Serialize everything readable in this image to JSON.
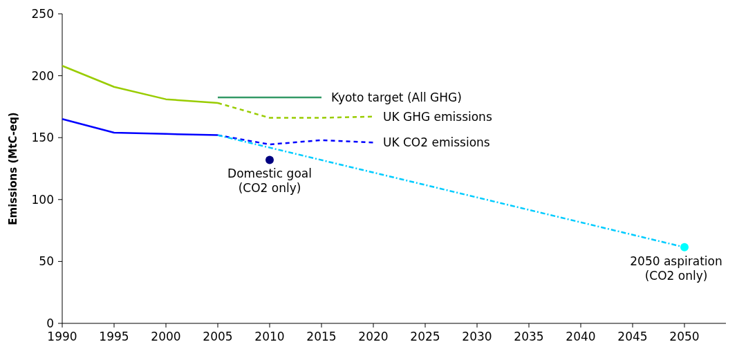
{
  "chart_data": {
    "type": "line",
    "ylabel": "Emissions (MtC-eq)",
    "xlim": [
      1990,
      2054
    ],
    "ylim": [
      0,
      250
    ],
    "xticks": [
      1990,
      1995,
      2000,
      2005,
      2010,
      2015,
      2020,
      2025,
      2030,
      2035,
      2040,
      2045,
      2050
    ],
    "yticks": [
      0,
      50,
      100,
      150,
      200,
      250
    ],
    "grid": false,
    "series": [
      {
        "color": "#99cc00",
        "x": [
          1990,
          1995,
          2000,
          2005
        ],
        "values": [
          208,
          191,
          181,
          178
        ],
        "line_style": "solid"
      },
      {
        "name": "UK GHG emissions",
        "color": "#99cc00",
        "x": [
          2005,
          2010,
          2015,
          2020
        ],
        "values": [
          178,
          166,
          166,
          167
        ],
        "line_style": "dashed"
      },
      {
        "color": "#0000ff",
        "x": [
          1990,
          1995,
          2000,
          2005
        ],
        "values": [
          165,
          154,
          153,
          152
        ],
        "line_style": "solid"
      },
      {
        "name": "UK CO2 emissions",
        "color": "#0000ff",
        "x": [
          2005,
          2010,
          2015,
          2020
        ],
        "values": [
          152,
          144.5,
          148,
          146
        ],
        "line_style": "dashed"
      },
      {
        "name": "Kyoto target (All GHG)",
        "color": "#339966",
        "x": [
          2005,
          2015
        ],
        "values": [
          182.5,
          182.5
        ],
        "line_style": "solid"
      },
      {
        "color": "#00ccff",
        "x": [
          2005,
          2050
        ],
        "values": [
          152,
          61.5
        ],
        "line_style": "dotted"
      },
      {
        "type": "scatter",
        "marker": "circle",
        "color": "#000080",
        "x": [
          2010
        ],
        "values": [
          132
        ]
      },
      {
        "type": "scatter",
        "marker": "circle",
        "color": "#00ffff",
        "x": [
          2050
        ],
        "values": [
          61.5
        ]
      }
    ],
    "annotations": [
      {
        "text": "Domestic goal\n(CO2 only)",
        "x": 2010,
        "y": 132
      },
      {
        "text": "2050 aspiration\n(CO2 only)",
        "x": 2050,
        "y": 61.5
      }
    ]
  }
}
